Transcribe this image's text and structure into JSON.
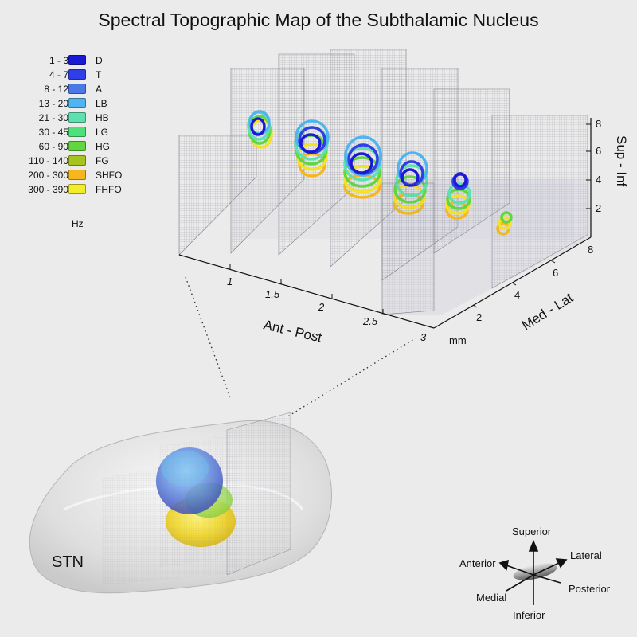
{
  "title": "Spectral Topographic Map of the Subthalamic Nucleus",
  "legend": {
    "unit": "Hz",
    "items": [
      {
        "range": "1 - 3",
        "name": "D",
        "color": "#1a1ad6"
      },
      {
        "range": "4 - 7",
        "name": "T",
        "color": "#2f3ee6"
      },
      {
        "range": "8 - 12",
        "name": "A",
        "color": "#4a78e6"
      },
      {
        "range": "13 - 20",
        "name": "LB",
        "color": "#4fb4ef"
      },
      {
        "range": "21 - 30",
        "name": "HB",
        "color": "#5ee0b0"
      },
      {
        "range": "30 - 45",
        "name": "LG",
        "color": "#4ee07a"
      },
      {
        "range": "60 - 90",
        "name": "HG",
        "color": "#62d640"
      },
      {
        "range": "110 - 140",
        "name": "FG",
        "color": "#a8c21e"
      },
      {
        "range": "200 - 300",
        "name": "SHFO",
        "color": "#f5b71e"
      },
      {
        "range": "300 - 390",
        "name": "FHFO",
        "color": "#f2ec2a"
      }
    ]
  },
  "axes": {
    "ant_post": {
      "label": "Ant - Post",
      "ticks": [
        "1",
        "1.5",
        "2",
        "2.5",
        "3"
      ]
    },
    "med_lat": {
      "label": "Med - Lat",
      "ticks": [
        "2",
        "4",
        "6",
        "8"
      ],
      "unit": "mm"
    },
    "sup_inf": {
      "label": "Sup - Inf",
      "ticks": [
        "2",
        "4",
        "6",
        "8"
      ]
    }
  },
  "stn_label": "STN",
  "orientation": {
    "superior": "Superior",
    "inferior": "Inferior",
    "anterior": "Anterior",
    "posterior": "Posterior",
    "lateral": "Lateral",
    "medial": "Medial"
  }
}
